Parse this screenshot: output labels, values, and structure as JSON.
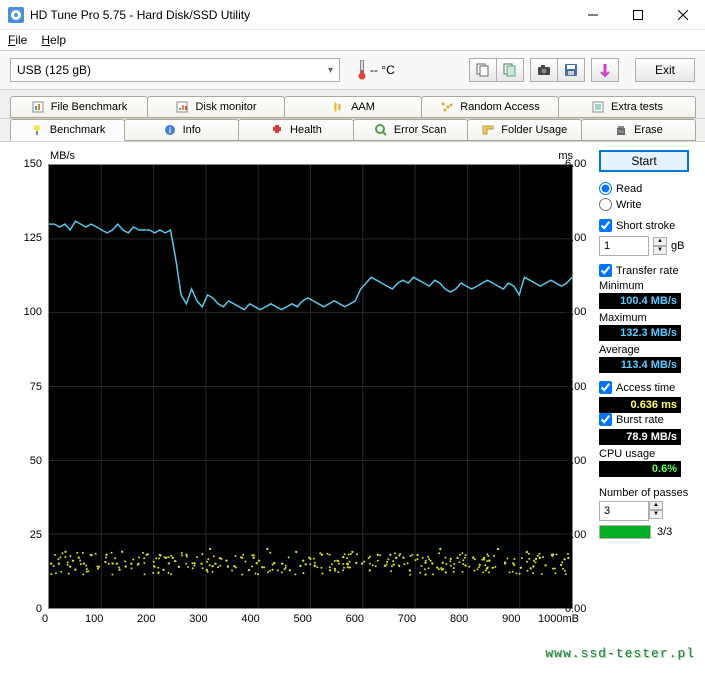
{
  "window": {
    "title": "HD Tune Pro 5.75 - Hard Disk/SSD Utility"
  },
  "menu": {
    "file": "File",
    "help": "Help"
  },
  "toolbar": {
    "drive": "USB (125 gB)",
    "temp": "-- °C",
    "exit": "Exit"
  },
  "tabs_row1": [
    {
      "label": "File Benchmark"
    },
    {
      "label": "Disk monitor"
    },
    {
      "label": "AAM"
    },
    {
      "label": "Random Access"
    },
    {
      "label": "Extra tests"
    }
  ],
  "tabs_row2": [
    {
      "label": "Benchmark",
      "active": true
    },
    {
      "label": "Info"
    },
    {
      "label": "Health"
    },
    {
      "label": "Error Scan"
    },
    {
      "label": "Folder Usage"
    },
    {
      "label": "Erase"
    }
  ],
  "chart": {
    "y_left_label": "MB/s",
    "y_right_label": "ms",
    "y_left": [
      {
        "v": 150,
        "p": 0
      },
      {
        "v": 125,
        "p": 16.67
      },
      {
        "v": 100,
        "p": 33.33
      },
      {
        "v": 75,
        "p": 50
      },
      {
        "v": 50,
        "p": 66.67
      },
      {
        "v": 25,
        "p": 83.33
      },
      {
        "v": 0,
        "p": 100
      }
    ],
    "y_right": [
      {
        "v": "6.00",
        "p": 0
      },
      {
        "v": "5.00",
        "p": 16.67
      },
      {
        "v": "4.00",
        "p": 33.33
      },
      {
        "v": "3.00",
        "p": 50
      },
      {
        "v": "2.00",
        "p": 66.67
      },
      {
        "v": "1.00",
        "p": 83.33
      },
      {
        "v": "0.00",
        "p": 100
      }
    ],
    "x_ticks": [
      "0",
      "100",
      "200",
      "300",
      "400",
      "500",
      "600",
      "700",
      "800",
      "900",
      "1000mB"
    ],
    "line_color": "#56c8e8",
    "scatter_color": "#d8d820",
    "grid_color": "#2a2a2a",
    "transfer_line": "130,130,129,130,128,131,130,129,130,129,128,127,128,130,128,127,129,128,128,128,127,128,127,128,118,106,103,108,104,102,106,105,103,102,104,103,102,101,103,102,101,102,103,102,101,102,103,102,104,105,104,103,102,103,104,103,102,103,104,108,110,112,111,110,109,108,110,111,110,112,111,110,109,111,110,108,107,108,110,109,108,109,110,111,110,109,108,110,109,106,112,111,110,109,110,111,110,109,110,112",
    "access_scatter_y": "16,15,18,14,17,13,16,15,19,14,17,15,16,13,18,14,16,15,17,14,19,13,16,15,18,14,17,15,16,13,19,14,16,17,15,14,18,13,16,15,17,14,19,15,16,13,18,14,17,15,16,14,19,13,15,17,16,14,18,15,16,13,17,14,19,15,16,14,18,13,17,15,16,14,19,15,13,17,16,14,18,15,16,13,17,14,19,15,16,14,18,13,15,17,16,14,19,15,16,13"
  },
  "side": {
    "start": "Start",
    "read": "Read",
    "write": "Write",
    "short_stroke": "Short stroke",
    "stroke_val": "1",
    "stroke_unit": "gB",
    "transfer_rate": "Transfer rate",
    "min_label": "Minimum",
    "min_val": "100.4 MB/s",
    "max_label": "Maximum",
    "max_val": "132.3 MB/s",
    "avg_label": "Average",
    "avg_val": "113.4 MB/s",
    "access_label": "Access time",
    "access_val": "0.636 ms",
    "burst_label": "Burst rate",
    "burst_val": "78.9 MB/s",
    "cpu_label": "CPU usage",
    "cpu_val": "0.6%",
    "passes_label": "Number of passes",
    "passes_val": "3",
    "passes_done": "3/3"
  },
  "watermark": "www.ssd-tester.pl"
}
